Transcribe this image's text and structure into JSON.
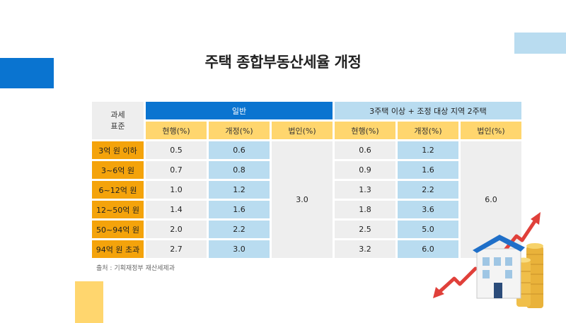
{
  "title": "주택 종합부동산세율 개정",
  "source": "출처 : 기획재정부 재산세제과",
  "colors": {
    "accent_blue": "#0a74d0",
    "light_blue": "#b9dcf0",
    "yellow": "#ffd66e",
    "orange": "#f4a30b"
  },
  "table": {
    "std_header": [
      "과세",
      "표준"
    ],
    "group_general": "일반",
    "group_multi": "3주택 이상 + 조정 대상 지역 2주택",
    "sub_headers": [
      "현행(%)",
      "개정(%)",
      "법인(%)",
      "현행(%)",
      "개정(%)",
      "법인(%)"
    ],
    "corp_general": "3.0",
    "corp_multi": "6.0",
    "rows": [
      {
        "label": "3억 원 이하",
        "gen_cur": "0.5",
        "gen_new": "0.6",
        "multi_cur": "0.6",
        "multi_new": "1.2"
      },
      {
        "label": "3~6억 원",
        "gen_cur": "0.7",
        "gen_new": "0.8",
        "multi_cur": "0.9",
        "multi_new": "1.6"
      },
      {
        "label": "6~12억 원",
        "gen_cur": "1.0",
        "gen_new": "1.2",
        "multi_cur": "1.3",
        "multi_new": "2.2"
      },
      {
        "label": "12~50억 원",
        "gen_cur": "1.4",
        "gen_new": "1.6",
        "multi_cur": "1.8",
        "multi_new": "3.6"
      },
      {
        "label": "50~94억 원",
        "gen_cur": "2.0",
        "gen_new": "2.2",
        "multi_cur": "2.5",
        "multi_new": "5.0"
      },
      {
        "label": "94억 원 초과",
        "gen_cur": "2.7",
        "gen_new": "3.0",
        "multi_cur": "3.2",
        "multi_new": "6.0"
      }
    ]
  }
}
